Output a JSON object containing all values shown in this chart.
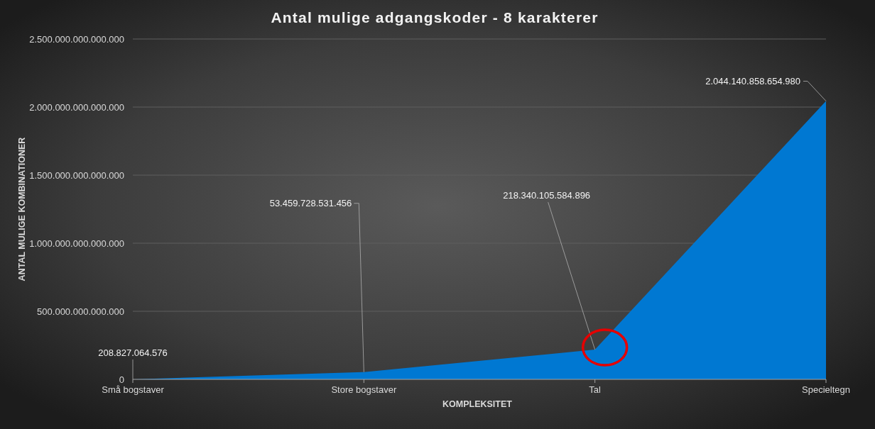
{
  "chart_data": {
    "type": "area",
    "title": "Antal mulige adgangskoder - 8 karakterer",
    "xlabel": "KOMPLEKSITET",
    "ylabel": "ANTAL MULIGE KOMBINATIONER",
    "categories": [
      "Små bogstaver",
      "Store bogstaver",
      "Tal",
      "Specieltegn"
    ],
    "values": [
      208827064576,
      53459728531456,
      218340105584896,
      2044140858654980
    ],
    "color": "#0078d2",
    "value_labels": [
      "208.827.064.576",
      "53.459.728.531.456",
      "218.340.105.584.896",
      "2.044.140.858.654.980"
    ],
    "ylim": [
      0,
      2500000000000000
    ],
    "yticks": [
      0,
      {
        "value": 500000000000000,
        "label": "500.000.000.000.000"
      },
      {
        "value": 1000000000000000,
        "label": "1.000.000.000.000.000"
      },
      {
        "value": 1500000000000000,
        "label": "1.500.000.000.000.000"
      },
      {
        "value": 2000000000000000,
        "label": "2.000.000.000.000.000"
      },
      {
        "value": 2500000000000000,
        "label": "2.500.000.000.000.000"
      }
    ],
    "grid": "y"
  }
}
